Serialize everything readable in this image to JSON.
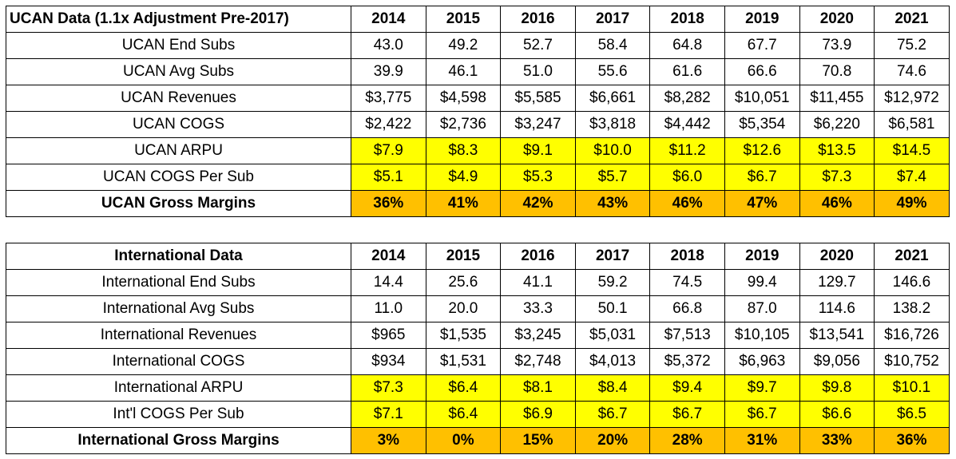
{
  "colors": {
    "yellow": "#ffff00",
    "orange": "#ffc000",
    "border": "#000000"
  },
  "tables": [
    {
      "header_label": "UCAN Data (1.1x Adjustment Pre-2017)",
      "header_align": "left",
      "years": [
        "2014",
        "2015",
        "2016",
        "2017",
        "2018",
        "2019",
        "2020",
        "2021"
      ],
      "rows": [
        {
          "label": "UCAN End Subs",
          "values": [
            "43.0",
            "49.2",
            "52.7",
            "58.4",
            "64.8",
            "67.7",
            "73.9",
            "75.2"
          ],
          "fill": "none",
          "bold": false
        },
        {
          "label": "UCAN Avg Subs",
          "values": [
            "39.9",
            "46.1",
            "51.0",
            "55.6",
            "61.6",
            "66.6",
            "70.8",
            "74.6"
          ],
          "fill": "none",
          "bold": false
        },
        {
          "label": "UCAN Revenues",
          "values": [
            "$3,775",
            "$4,598",
            "$5,585",
            "$6,661",
            "$8,282",
            "$10,051",
            "$11,455",
            "$12,972"
          ],
          "fill": "none",
          "bold": false
        },
        {
          "label": "UCAN COGS",
          "values": [
            "$2,422",
            "$2,736",
            "$3,247",
            "$3,818",
            "$4,442",
            "$5,354",
            "$6,220",
            "$6,581"
          ],
          "fill": "none",
          "bold": false
        },
        {
          "label": "UCAN ARPU",
          "values": [
            "$7.9",
            "$8.3",
            "$9.1",
            "$10.0",
            "$11.2",
            "$12.6",
            "$13.5",
            "$14.5"
          ],
          "fill": "yellow",
          "bold": false
        },
        {
          "label": "UCAN COGS Per Sub",
          "values": [
            "$5.1",
            "$4.9",
            "$5.3",
            "$5.7",
            "$6.0",
            "$6.7",
            "$7.3",
            "$7.4"
          ],
          "fill": "yellow",
          "bold": false
        },
        {
          "label": "UCAN Gross Margins",
          "values": [
            "36%",
            "41%",
            "42%",
            "43%",
            "46%",
            "47%",
            "46%",
            "49%"
          ],
          "fill": "orange",
          "bold": true
        }
      ]
    },
    {
      "header_label": "International Data",
      "header_align": "center",
      "years": [
        "2014",
        "2015",
        "2016",
        "2017",
        "2018",
        "2019",
        "2020",
        "2021"
      ],
      "rows": [
        {
          "label": "International End Subs",
          "values": [
            "14.4",
            "25.6",
            "41.1",
            "59.2",
            "74.5",
            "99.4",
            "129.7",
            "146.6"
          ],
          "fill": "none",
          "bold": false
        },
        {
          "label": "International Avg Subs",
          "values": [
            "11.0",
            "20.0",
            "33.3",
            "50.1",
            "66.8",
            "87.0",
            "114.6",
            "138.2"
          ],
          "fill": "none",
          "bold": false
        },
        {
          "label": "International Revenues",
          "values": [
            "$965",
            "$1,535",
            "$3,245",
            "$5,031",
            "$7,513",
            "$10,105",
            "$13,541",
            "$16,726"
          ],
          "fill": "none",
          "bold": false
        },
        {
          "label": "International COGS",
          "values": [
            "$934",
            "$1,531",
            "$2,748",
            "$4,013",
            "$5,372",
            "$6,963",
            "$9,056",
            "$10,752"
          ],
          "fill": "none",
          "bold": false
        },
        {
          "label": "International ARPU",
          "values": [
            "$7.3",
            "$6.4",
            "$8.1",
            "$8.4",
            "$9.4",
            "$9.7",
            "$9.8",
            "$10.1"
          ],
          "fill": "yellow",
          "bold": false
        },
        {
          "label": "Int'l COGS Per Sub",
          "values": [
            "$7.1",
            "$6.4",
            "$6.9",
            "$6.7",
            "$6.7",
            "$6.7",
            "$6.6",
            "$6.5"
          ],
          "fill": "yellow",
          "bold": false
        },
        {
          "label": "International Gross Margins",
          "values": [
            "3%",
            "0%",
            "15%",
            "20%",
            "28%",
            "31%",
            "33%",
            "36%"
          ],
          "fill": "orange",
          "bold": true
        }
      ]
    }
  ]
}
